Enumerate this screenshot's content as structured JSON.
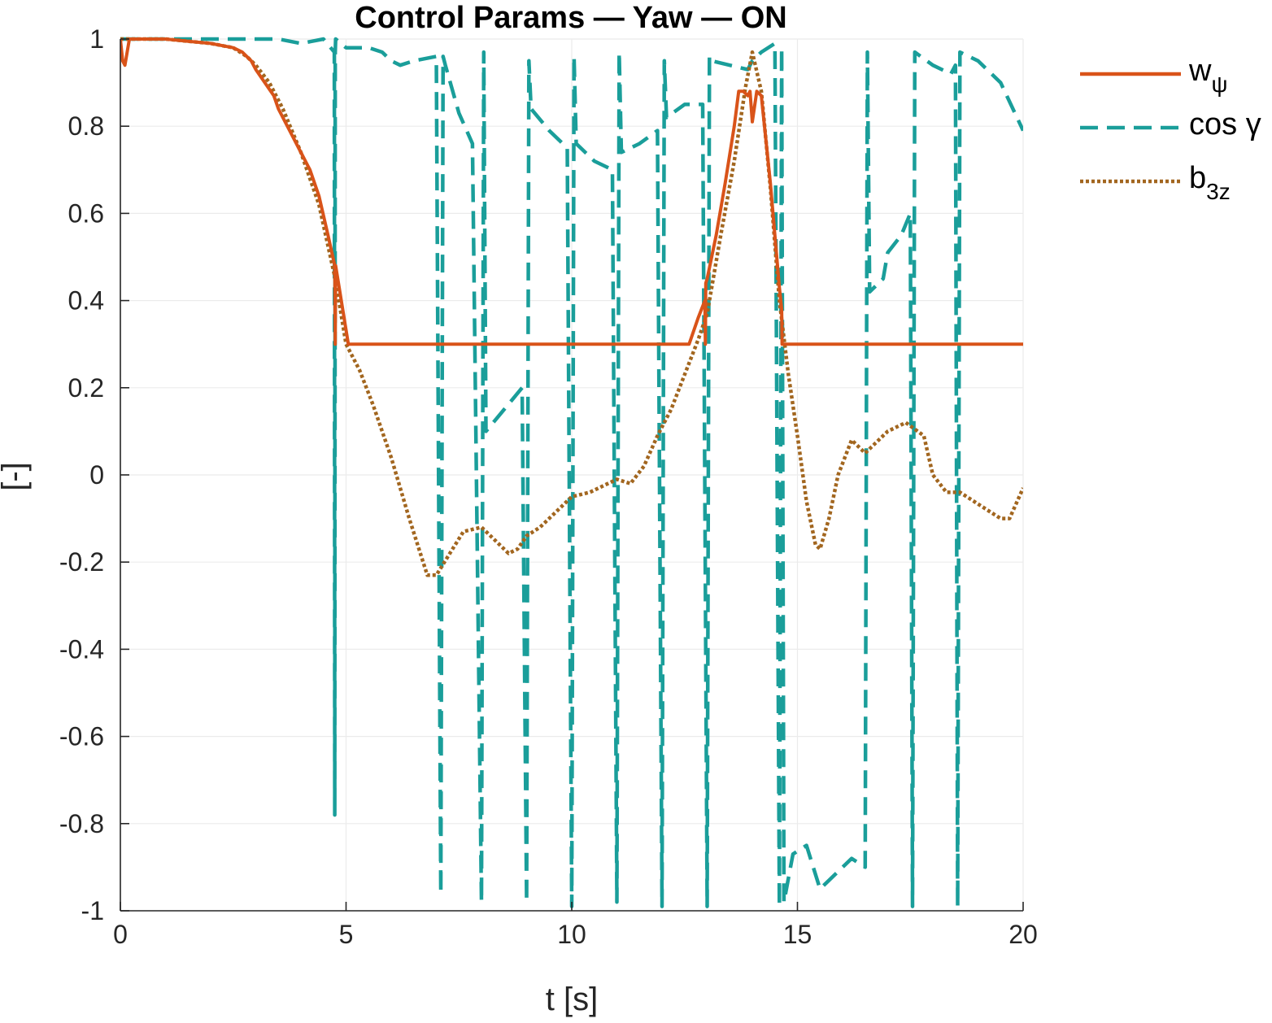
{
  "chart_data": {
    "type": "line",
    "title": "Control Params — Yaw — ON",
    "xlabel": "t [s]",
    "ylabel": "[-]",
    "xlim": [
      0,
      20
    ],
    "ylim": [
      -1,
      1
    ],
    "xticks": [
      0,
      5,
      10,
      15,
      20
    ],
    "xtick_labels": [
      "0",
      "5",
      "10",
      "15",
      "20"
    ],
    "yticks": [
      -1,
      -0.8,
      -0.6,
      -0.4,
      -0.2,
      0,
      0.2,
      0.4,
      0.6,
      0.8,
      1
    ],
    "ytick_labels": [
      "-1",
      "-0.8",
      "-0.6",
      "-0.4",
      "-0.2",
      "0",
      "0.2",
      "0.4",
      "0.6",
      "0.8",
      "1"
    ],
    "grid": true,
    "legend_position": "outside-top-right",
    "series": [
      {
        "name": "w",
        "name_subscript": "ψ",
        "color": "#D95319",
        "style": "solid",
        "x": [
          0,
          0.05,
          0.1,
          0.2,
          0.3,
          0.5,
          1.0,
          1.5,
          2.0,
          2.5,
          2.7,
          2.9,
          3.0,
          3.2,
          3.4,
          3.5,
          3.6,
          3.8,
          4.0,
          4.2,
          4.4,
          4.6,
          4.75,
          4.76,
          4.77,
          5.05,
          10.0,
          12.6,
          12.8,
          12.95,
          12.96,
          12.97,
          13.0,
          13.2,
          13.4,
          13.6,
          13.7,
          13.8,
          13.9,
          13.95,
          14.0,
          14.1,
          14.2,
          14.4,
          14.6,
          14.65,
          14.66,
          20
        ],
        "y": [
          1.0,
          0.95,
          0.94,
          1.0,
          1.0,
          1.0,
          1.0,
          0.995,
          0.99,
          0.98,
          0.97,
          0.95,
          0.93,
          0.9,
          0.87,
          0.84,
          0.82,
          0.78,
          0.74,
          0.7,
          0.64,
          0.55,
          0.48,
          0.3,
          0.48,
          0.3,
          0.3,
          0.3,
          0.36,
          0.4,
          0.3,
          0.44,
          0.45,
          0.55,
          0.67,
          0.8,
          0.88,
          0.88,
          0.87,
          0.88,
          0.81,
          0.88,
          0.87,
          0.67,
          0.43,
          0.38,
          0.3,
          0.3
        ]
      },
      {
        "name": "cos γ",
        "color": "#1A9E9A",
        "style": "dashed",
        "x": [
          0,
          1,
          2,
          3,
          3.5,
          4,
          4.5,
          4.74,
          4.75,
          4.76,
          4.77,
          5,
          5.5,
          5.8,
          6,
          6.2,
          6.5,
          7,
          7.1,
          7.15,
          7.2,
          7.5,
          7.8,
          8.0,
          8.05,
          8.1,
          8.5,
          8.9,
          9.0,
          9.05,
          9.1,
          9.5,
          9.9,
          10.0,
          10.05,
          10.1,
          10.5,
          10.9,
          11.0,
          11.05,
          11.1,
          11.5,
          11.9,
          12.0,
          12.05,
          12.1,
          12.5,
          12.9,
          13.0,
          13.05,
          13.1,
          13.5,
          13.9,
          14.0,
          14.2,
          14.5,
          14.6,
          14.65,
          14.7,
          14.9,
          15.2,
          15.5,
          15.8,
          16.2,
          16.5,
          16.55,
          16.6,
          16.9,
          17.0,
          17.3,
          17.5,
          17.55,
          17.6,
          18.0,
          18.4,
          18.5,
          18.55,
          18.6,
          19.0,
          19.5,
          20
        ],
        "y": [
          1.0,
          1.0,
          1.0,
          1.0,
          1.0,
          0.99,
          1.0,
          0.97,
          -0.78,
          0.97,
          1.0,
          0.98,
          0.98,
          0.97,
          0.95,
          0.94,
          0.95,
          0.96,
          -0.96,
          0.96,
          0.94,
          0.83,
          0.76,
          -0.98,
          0.97,
          0.1,
          0.15,
          0.2,
          -0.98,
          0.95,
          0.84,
          0.79,
          0.75,
          -0.99,
          0.96,
          0.76,
          0.72,
          0.7,
          -0.98,
          0.97,
          0.74,
          0.76,
          0.79,
          -0.99,
          0.95,
          0.82,
          0.85,
          0.85,
          -0.99,
          0.96,
          0.95,
          0.94,
          0.93,
          0.95,
          0.97,
          0.99,
          -0.99,
          0.98,
          -0.98,
          -0.87,
          -0.85,
          -0.95,
          -0.92,
          -0.88,
          -0.9,
          0.97,
          0.42,
          0.45,
          0.51,
          0.55,
          0.6,
          -0.99,
          0.97,
          0.94,
          0.92,
          0.94,
          -0.99,
          0.97,
          0.95,
          0.9,
          0.79
        ]
      },
      {
        "name": "b",
        "name_subscript": "3z",
        "color": "#A2661F",
        "style": "dotted",
        "x": [
          0,
          0.5,
          1,
          1.5,
          2,
          2.5,
          2.8,
          3.0,
          3.3,
          3.6,
          4.0,
          4.4,
          4.76,
          5.0,
          5.3,
          5.6,
          6.0,
          6.4,
          6.8,
          7.0,
          7.3,
          7.6,
          8.0,
          8.3,
          8.6,
          8.8,
          9.0,
          9.3,
          9.6,
          10.0,
          10.4,
          10.8,
          11.0,
          11.3,
          11.6,
          11.9,
          12.2,
          12.5,
          12.8,
          13.0,
          13.3,
          13.6,
          13.85,
          14.0,
          14.2,
          14.4,
          14.6,
          14.8,
          15.0,
          15.2,
          15.4,
          15.5,
          15.7,
          15.9,
          16.2,
          16.5,
          16.8,
          17.0,
          17.4,
          17.8,
          18.0,
          18.3,
          18.6,
          18.9,
          19.2,
          19.5,
          19.7,
          20
        ],
        "y": [
          1.0,
          1.0,
          1.0,
          0.995,
          0.99,
          0.98,
          0.96,
          0.94,
          0.9,
          0.84,
          0.74,
          0.62,
          0.45,
          0.3,
          0.24,
          0.16,
          0.04,
          -0.1,
          -0.23,
          -0.23,
          -0.18,
          -0.13,
          -0.12,
          -0.15,
          -0.18,
          -0.17,
          -0.14,
          -0.12,
          -0.09,
          -0.05,
          -0.04,
          -0.02,
          -0.01,
          -0.02,
          0.02,
          0.09,
          0.15,
          0.23,
          0.31,
          0.37,
          0.55,
          0.72,
          0.89,
          0.97,
          0.88,
          0.66,
          0.4,
          0.23,
          0.09,
          -0.06,
          -0.16,
          -0.17,
          -0.1,
          0.0,
          0.08,
          0.05,
          0.08,
          0.1,
          0.12,
          0.09,
          0.0,
          -0.04,
          -0.04,
          -0.06,
          -0.08,
          -0.1,
          -0.1,
          -0.03
        ]
      }
    ]
  }
}
